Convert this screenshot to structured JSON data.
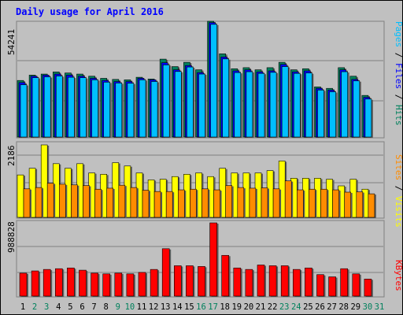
{
  "chart_data": [
    {
      "type": "bar",
      "title": "Daily usage for April 2016",
      "ymax_label": "54241",
      "ylim": [
        0,
        54241
      ],
      "categories": [
        "1",
        "2",
        "3",
        "4",
        "5",
        "6",
        "7",
        "8",
        "9",
        "10",
        "11",
        "12",
        "13",
        "14",
        "15",
        "16",
        "17",
        "18",
        "19",
        "20",
        "21",
        "22",
        "23",
        "24",
        "25",
        "26",
        "27",
        "28",
        "29",
        "30",
        "31"
      ],
      "weekend_days": [
        "2",
        "3",
        "9",
        "10",
        "16",
        "17",
        "23",
        "24",
        "30",
        "31"
      ],
      "series": [
        {
          "name": "Hits",
          "color": "#00805c",
          "values": [
            26500,
            29000,
            29500,
            30500,
            30000,
            29500,
            28500,
            27500,
            27000,
            26800,
            28000,
            27200,
            36500,
            33000,
            35000,
            31500,
            54241,
            39000,
            32000,
            32500,
            31500,
            32500,
            35000,
            31500,
            32000,
            23500,
            22800,
            32500,
            28500,
            19500,
            0
          ]
        },
        {
          "name": "Files",
          "color": "#0000ff",
          "values": [
            25500,
            28500,
            29000,
            29500,
            29000,
            28500,
            27500,
            26500,
            26000,
            26000,
            27500,
            26800,
            34800,
            31500,
            33500,
            30200,
            53600,
            37500,
            31000,
            31500,
            30500,
            31000,
            34000,
            30500,
            31000,
            22800,
            22000,
            31500,
            27000,
            18600,
            0
          ]
        },
        {
          "name": "Pages",
          "color": "#00bfff",
          "values": [
            24500,
            27800,
            28200,
            28600,
            28000,
            27800,
            26800,
            25700,
            25300,
            25200,
            26800,
            26000,
            33800,
            30700,
            32800,
            29500,
            52800,
            36600,
            30200,
            30600,
            29800,
            30300,
            33000,
            29800,
            30000,
            22000,
            21200,
            30600,
            26300,
            17800,
            0
          ]
        }
      ]
    },
    {
      "type": "bar",
      "ymax_label": "2186",
      "ylim": [
        0,
        2186
      ],
      "series": [
        {
          "name": "Visits",
          "color": "#ffff00",
          "values": [
            1280,
            1480,
            2186,
            1620,
            1480,
            1620,
            1340,
            1300,
            1650,
            1550,
            1340,
            1130,
            1150,
            1230,
            1300,
            1340,
            1230,
            1480,
            1340,
            1340,
            1340,
            1410,
            1700,
            1180,
            1180,
            1180,
            1150,
            950,
            1150,
            850,
            0
          ]
        },
        {
          "name": "Sites",
          "color": "#ff8c00",
          "values": [
            860,
            900,
            1030,
            1000,
            980,
            960,
            850,
            880,
            970,
            900,
            820,
            780,
            780,
            830,
            850,
            860,
            830,
            960,
            900,
            880,
            890,
            860,
            1100,
            830,
            850,
            850,
            830,
            760,
            770,
            710,
            0
          ]
        }
      ]
    },
    {
      "type": "bar",
      "ymax_label": "988828",
      "ylim": [
        0,
        988828
      ],
      "series": [
        {
          "name": "KBytes",
          "color": "#ff0000",
          "values": [
            310000,
            340000,
            360000,
            370000,
            380000,
            350000,
            310000,
            300000,
            310000,
            300000,
            320000,
            360000,
            640000,
            410000,
            410000,
            400000,
            988828,
            550000,
            380000,
            360000,
            420000,
            410000,
            410000,
            360000,
            380000,
            290000,
            260000,
            370000,
            300000,
            230000,
            0
          ]
        }
      ]
    }
  ]
}
